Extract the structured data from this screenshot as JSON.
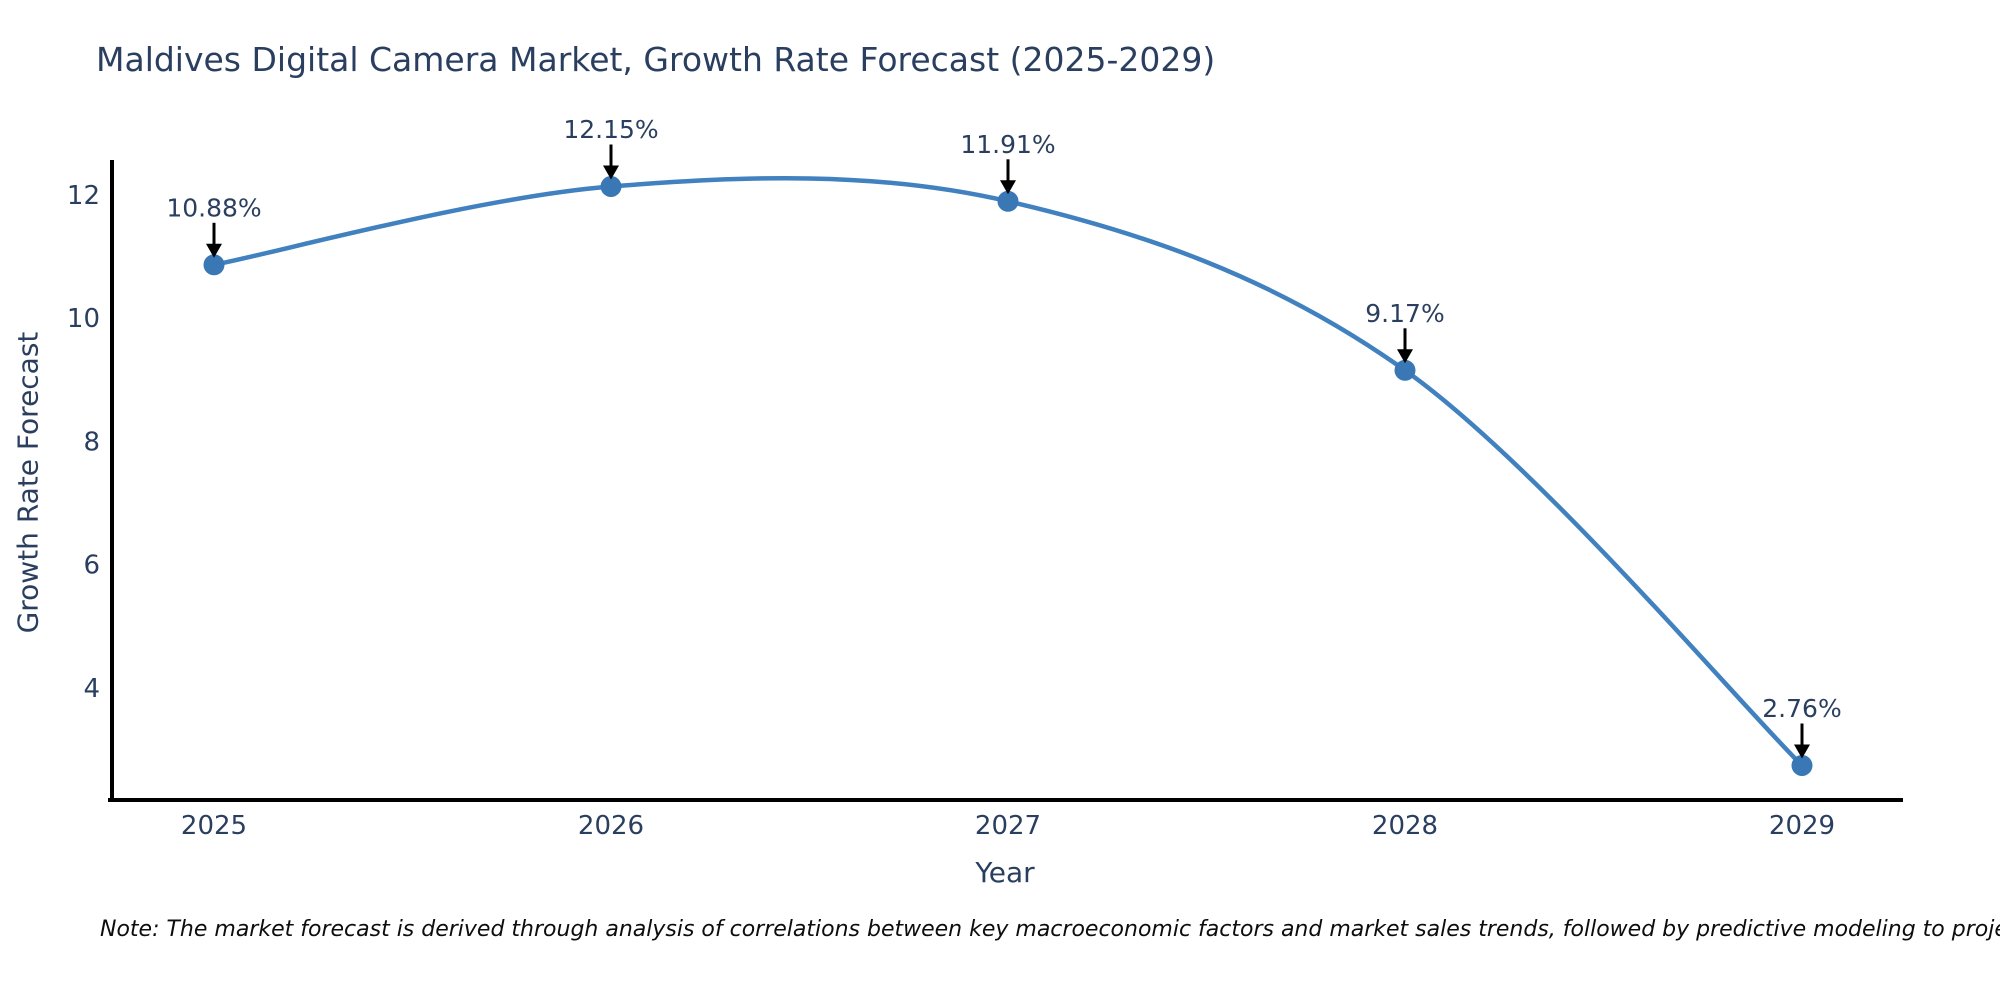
{
  "page": {
    "background": "#ffffff"
  },
  "chart": {
    "title": "Maldives Digital Camera Market, Growth Rate Forecast (2025-2029)",
    "note": "Note: The market forecast is derived through analysis of correlations between key macroeconomic factors and market sales trends, followed by predictive modeling to project future sales."
  },
  "chart_data": {
    "type": "line",
    "title": "Maldives Digital Camera Market, Growth Rate Forecast (2025-2029)",
    "xlabel": "Year",
    "ylabel": "Growth Rate Forecast",
    "categories": [
      "2025",
      "2026",
      "2027",
      "2028",
      "2029"
    ],
    "x": [
      2025,
      2026,
      2027,
      2028,
      2029
    ],
    "values": [
      10.88,
      12.15,
      11.91,
      9.17,
      2.76
    ],
    "point_labels": [
      "10.88%",
      "12.15%",
      "11.91%",
      "9.17%",
      "2.76%"
    ],
    "y_ticks": [
      12,
      10,
      8,
      6,
      4
    ],
    "ylim": [
      2.2,
      12.58
    ],
    "line_shape": "spline",
    "grid": false,
    "legend_position": "none",
    "colors": {
      "line": "#4181bf",
      "marker": "#3a78b5",
      "axis": "#000000",
      "tick_text": "#2a3f5f",
      "annotation_text": "#2a3f5f",
      "annotation_arrow": "#000000"
    }
  }
}
